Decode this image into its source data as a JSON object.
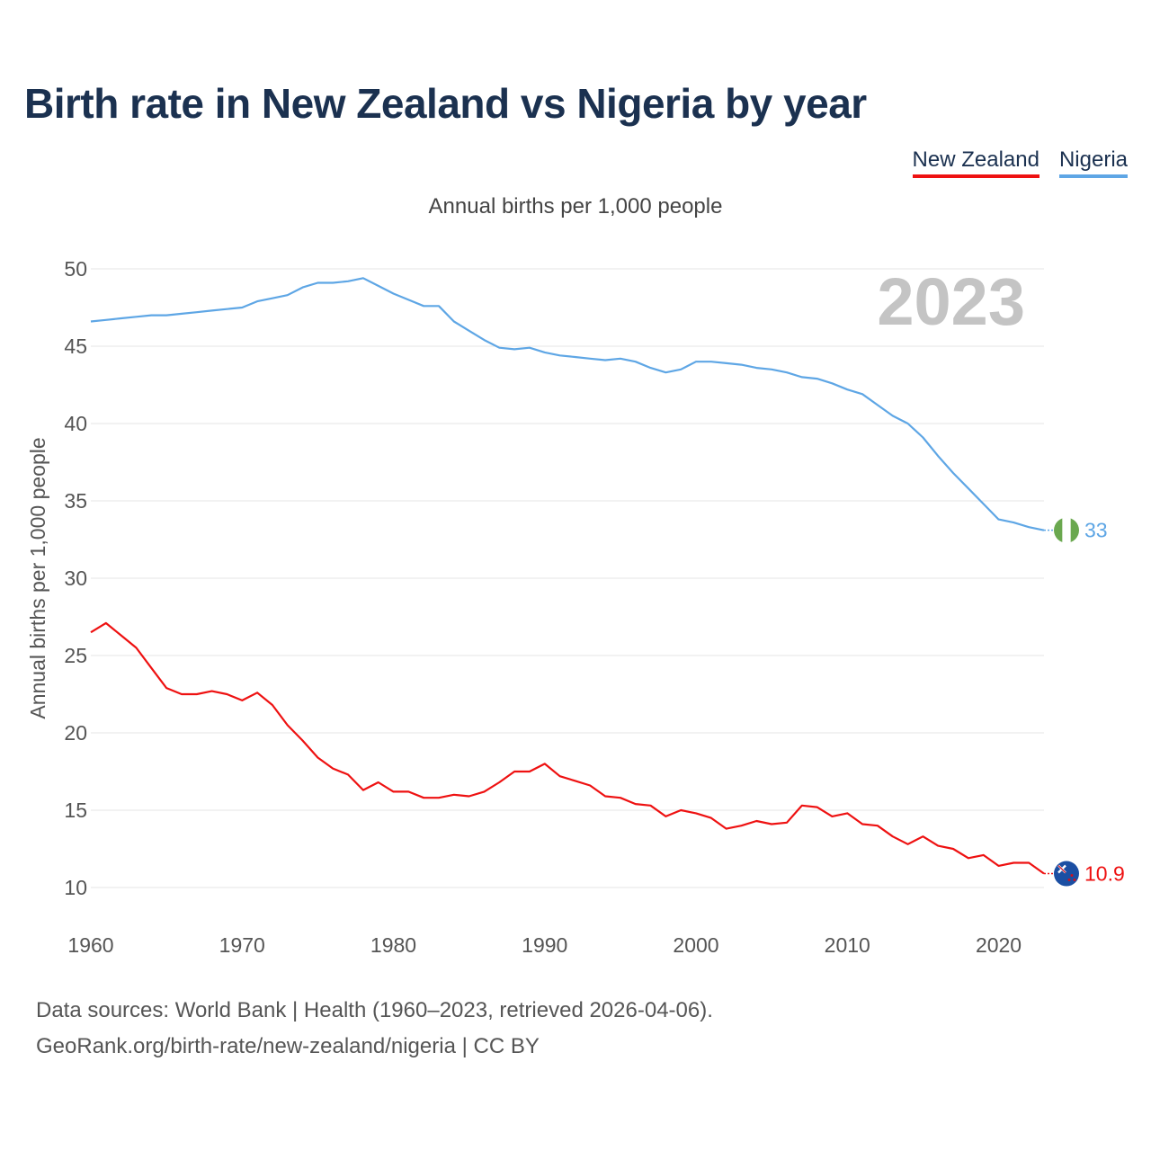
{
  "title": "Birth rate in New Zealand vs Nigeria by year",
  "legend": [
    {
      "name": "New Zealand",
      "color": "#ee1111"
    },
    {
      "name": "Nigeria",
      "color": "#5ea6e5"
    }
  ],
  "colors": {
    "title": "#1b3150",
    "grid": "#e6e6e6",
    "axis_text": "#555555",
    "year_watermark": "#c4c4c4"
  },
  "footer": {
    "line1": "Data sources: World Bank | Health (1960–2023, retrieved 2026-04-06).",
    "line2": "GeoRank.org/birth-rate/new-zealand/nigeria | CC BY"
  },
  "chart_data": {
    "type": "line",
    "title": "Birth rate in New Zealand vs Nigeria by year",
    "subtitle": "Annual births per 1,000 people",
    "xlabel": "",
    "ylabel": "Annual births per 1,000 people",
    "xlim": [
      1960,
      2023
    ],
    "ylim": [
      10,
      50
    ],
    "yticks": [
      10,
      15,
      20,
      25,
      30,
      35,
      40,
      45,
      50
    ],
    "xticks": [
      1960,
      1970,
      1980,
      1990,
      2000,
      2010,
      2020
    ],
    "grid": true,
    "legend_position": "top-right",
    "year_label": "2023",
    "x": [
      1960,
      1961,
      1962,
      1963,
      1964,
      1965,
      1966,
      1967,
      1968,
      1969,
      1970,
      1971,
      1972,
      1973,
      1974,
      1975,
      1976,
      1977,
      1978,
      1979,
      1980,
      1981,
      1982,
      1983,
      1984,
      1985,
      1986,
      1987,
      1988,
      1989,
      1990,
      1991,
      1992,
      1993,
      1994,
      1995,
      1996,
      1997,
      1998,
      1999,
      2000,
      2001,
      2002,
      2003,
      2004,
      2005,
      2006,
      2007,
      2008,
      2009,
      2010,
      2011,
      2012,
      2013,
      2014,
      2015,
      2016,
      2017,
      2018,
      2019,
      2020,
      2021,
      2022,
      2023
    ],
    "series": [
      {
        "name": "New Zealand",
        "color": "#ee1111",
        "end_label": "10.9",
        "values": [
          26.5,
          27.1,
          26.3,
          25.5,
          24.2,
          22.9,
          22.5,
          22.5,
          22.7,
          22.5,
          22.1,
          22.6,
          21.8,
          20.5,
          19.5,
          18.4,
          17.7,
          17.3,
          16.3,
          16.8,
          16.2,
          16.2,
          15.8,
          15.8,
          16.0,
          15.9,
          16.2,
          16.8,
          17.5,
          17.5,
          18.0,
          17.2,
          16.9,
          16.6,
          15.9,
          15.8,
          15.4,
          15.3,
          14.6,
          15.0,
          14.8,
          14.5,
          13.8,
          14.0,
          14.3,
          14.1,
          14.2,
          15.3,
          15.2,
          14.6,
          14.8,
          14.1,
          14.0,
          13.3,
          12.8,
          13.3,
          12.7,
          12.5,
          11.9,
          12.1,
          11.4,
          11.6,
          11.6,
          10.9
        ]
      },
      {
        "name": "Nigeria",
        "color": "#5ea6e5",
        "end_label": "33",
        "values": [
          46.6,
          46.7,
          46.8,
          46.9,
          47.0,
          47.0,
          47.1,
          47.2,
          47.3,
          47.4,
          47.5,
          47.9,
          48.1,
          48.3,
          48.8,
          49.1,
          49.1,
          49.2,
          49.4,
          48.9,
          48.4,
          48.0,
          47.6,
          47.6,
          46.6,
          46.0,
          45.4,
          44.9,
          44.8,
          44.9,
          44.6,
          44.4,
          44.3,
          44.2,
          44.1,
          44.2,
          44.0,
          43.6,
          43.3,
          43.5,
          44.0,
          44.0,
          43.9,
          43.8,
          43.6,
          43.5,
          43.3,
          43.0,
          42.9,
          42.6,
          42.2,
          41.9,
          41.2,
          40.5,
          40.0,
          39.1,
          37.9,
          36.8,
          35.8,
          34.8,
          33.8,
          33.6,
          33.3,
          33.1
        ]
      }
    ]
  }
}
